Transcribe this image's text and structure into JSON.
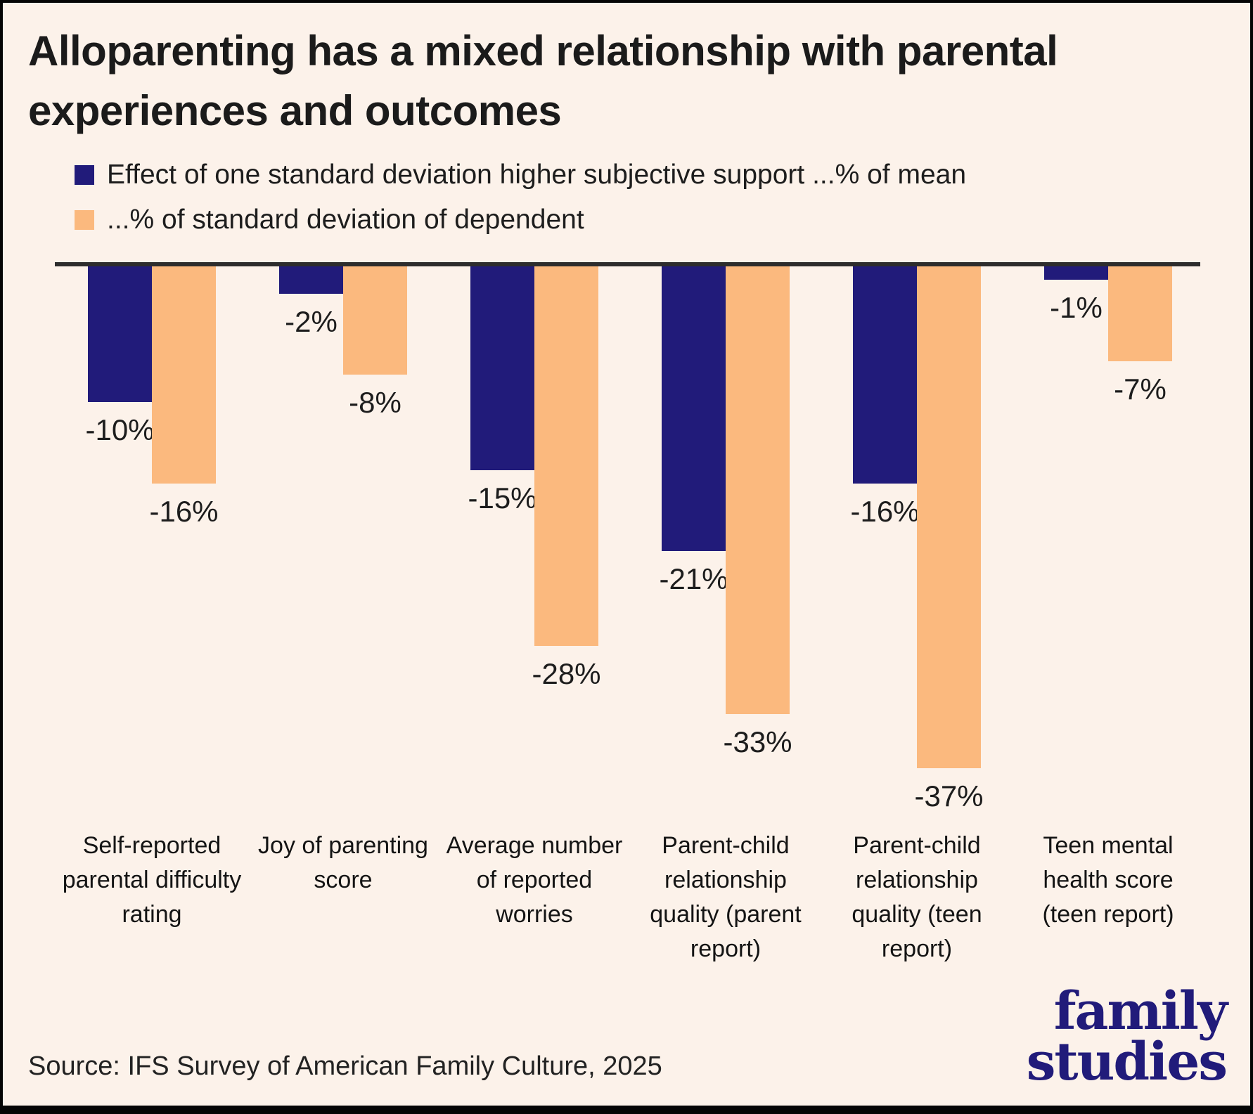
{
  "title": {
    "line1": "Alloparenting has a mixed relationship with parental",
    "line2": "experiences and outcomes"
  },
  "legend": {
    "items": [
      {
        "label": "Effect of one standard deviation higher subjective support ...% of mean",
        "swatch": "navy-square-icon",
        "color": "#211b7a"
      },
      {
        "label": "...% of standard deviation of dependent",
        "swatch": "orange-square-icon",
        "color": "#fbb97e"
      }
    ]
  },
  "source_note": "Source: IFS Survey of American Family Culture, 2025",
  "logo": {
    "line1": "family",
    "line2": "studies",
    "color": "#211b7a"
  },
  "colors": {
    "background": "#fcf2ea",
    "navy": "#211b7a",
    "orange": "#fbb97e",
    "axis_line": "#2d2d2d",
    "text": "#1d1d1d"
  },
  "chart_data": {
    "type": "bar",
    "orientation": "vertical",
    "baseline": 0,
    "grid": false,
    "legend_position": "top-left",
    "value_unit": "%",
    "ylim": [
      -40,
      0
    ],
    "categories": [
      "Self-reported parental difficulty rating",
      "Joy of parenting score",
      "Average number of reported worries",
      "Parent-child relationship quality (parent report)",
      "Parent-child relationship quality (teen report)",
      "Teen mental health score (teen report)"
    ],
    "series": [
      {
        "name": "Effect of one standard deviation higher subjective support ...% of mean",
        "color": "#211b7a",
        "values": [
          -10,
          -2,
          -15,
          -21,
          -16,
          -1
        ],
        "labels": [
          "-10%",
          "-2%",
          "-15%",
          "-21%",
          "-16%",
          "-1%"
        ]
      },
      {
        "name": "...% of standard deviation of dependent",
        "color": "#fbb97e",
        "values": [
          -16,
          -8,
          -28,
          -33,
          -37,
          -7
        ],
        "labels": [
          "-16%",
          "-8%",
          "-28%",
          "-33%",
          "-37%",
          "-7%"
        ]
      }
    ]
  }
}
